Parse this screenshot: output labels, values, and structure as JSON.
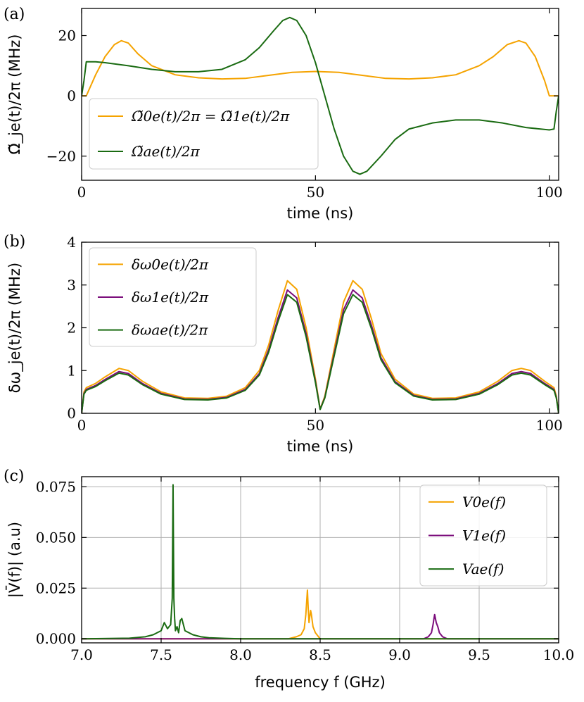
{
  "chart_data": [
    {
      "panel_label": "(a)",
      "type": "line",
      "xlabel": "time (ns)",
      "ylabel": "Ω̃_je(t)/2π (MHz)",
      "xlim": [
        0,
        102
      ],
      "ylim": [
        -28,
        29
      ],
      "xticks": [
        0,
        50,
        100
      ],
      "yticks": [
        -20,
        0,
        20
      ],
      "grid": false,
      "legend_position": "lower-left",
      "series": [
        {
          "name": "Ω̃0e(t)/2π = Ω̃1e(t)/2π",
          "color": "#f5a300",
          "x": [
            0,
            1,
            3,
            5,
            7,
            8.5,
            10,
            12,
            15,
            20,
            25,
            30,
            35,
            40,
            45,
            50,
            55,
            60,
            65,
            70,
            75,
            80,
            85,
            88,
            91,
            93.5,
            95,
            97,
            99,
            100,
            101,
            102
          ],
          "y": [
            0,
            0,
            7,
            13,
            17,
            18.3,
            17.5,
            14,
            10,
            7,
            6,
            5.6,
            5.8,
            6.8,
            7.8,
            8.1,
            7.8,
            6.8,
            5.8,
            5.6,
            6,
            7,
            10,
            13,
            17,
            18.3,
            17.5,
            13,
            5,
            0,
            0,
            0
          ]
        },
        {
          "name": "Ω̃ae(t)/2π",
          "color": "#1a6b12",
          "x": [
            0,
            0.5,
            1,
            3,
            5,
            10,
            15,
            20,
            25,
            30,
            35,
            38,
            41,
            43,
            44.5,
            46,
            48,
            50,
            52,
            54,
            56,
            58,
            59.5,
            61,
            64,
            67,
            70,
            75,
            80,
            85,
            90,
            95,
            100,
            101,
            101.5,
            102
          ],
          "y": [
            0,
            5,
            11.3,
            11.3,
            11,
            10,
            8.8,
            8,
            8,
            8.8,
            12,
            16,
            21.5,
            25,
            26,
            25,
            20,
            11,
            0,
            -11,
            -20,
            -25,
            -26,
            -25,
            -20,
            -14.5,
            -11,
            -9,
            -8,
            -8,
            -9,
            -10.5,
            -11.3,
            -11,
            -5,
            0
          ]
        }
      ]
    },
    {
      "panel_label": "(b)",
      "type": "line",
      "xlabel": "time (ns)",
      "ylabel": "δω_je(t)/2π (MHz)",
      "xlim": [
        0,
        102
      ],
      "ylim": [
        0,
        4
      ],
      "xticks": [
        0,
        50,
        100
      ],
      "yticks": [
        0,
        1,
        2,
        3,
        4
      ],
      "grid": false,
      "legend_position": "upper-left",
      "series": [
        {
          "name": "δω0e(t)/2π",
          "color": "#f5a300",
          "scale": 1.0,
          "x": [
            0,
            0.5,
            1,
            3,
            5,
            8,
            10,
            13,
            17,
            22,
            27,
            31,
            35,
            38,
            40,
            42,
            44,
            46,
            48,
            50,
            51,
            52,
            54,
            56,
            58,
            60,
            62,
            64,
            67,
            71,
            75,
            80,
            85,
            89,
            92,
            94,
            96,
            99,
            101,
            101.5,
            102
          ],
          "y": [
            0,
            0.5,
            0.6,
            0.7,
            0.85,
            1.05,
            1.0,
            0.75,
            0.5,
            0.36,
            0.35,
            0.4,
            0.6,
            1.0,
            1.6,
            2.4,
            3.1,
            2.9,
            2.0,
            0.8,
            0.1,
            0.4,
            1.5,
            2.6,
            3.1,
            2.9,
            2.2,
            1.4,
            0.8,
            0.45,
            0.35,
            0.36,
            0.5,
            0.75,
            1.0,
            1.05,
            1.0,
            0.75,
            0.6,
            0.4,
            0
          ]
        },
        {
          "name": "δω1e(t)/2π",
          "color": "#7b0c7b",
          "scale": 0.93
        },
        {
          "name": "δωae(t)/2π",
          "color": "#1a6b12",
          "scale": 0.895
        }
      ]
    },
    {
      "panel_label": "(c)",
      "type": "line",
      "xlabel": "frequency f (GHz)",
      "ylabel": "|V̄(f)| (a.u)",
      "xlim": [
        7.0,
        10.0
      ],
      "ylim": [
        -0.002,
        0.08
      ],
      "xticks": [
        7.0,
        7.5,
        8.0,
        8.5,
        9.0,
        9.5,
        10.0
      ],
      "xtick_labels": [
        "7.0",
        "7.5",
        "8.0",
        "8.5",
        "9.0",
        "9.5",
        "10.0"
      ],
      "yticks": [
        0.0,
        0.025,
        0.05,
        0.075
      ],
      "ytick_labels": [
        "0.000",
        "0.025",
        "0.050",
        "0.075"
      ],
      "grid": true,
      "legend_position": "upper-right",
      "series": [
        {
          "name": "V0e(f)",
          "color": "#f5a300",
          "x": [
            7.0,
            8.3,
            8.35,
            8.38,
            8.4,
            8.41,
            8.42,
            8.425,
            8.43,
            8.44,
            8.445,
            8.455,
            8.47,
            8.49,
            8.5,
            10.0
          ],
          "y": [
            0,
            0,
            0.001,
            0.002,
            0.005,
            0.012,
            0.024,
            0.015,
            0.008,
            0.014,
            0.012,
            0.006,
            0.003,
            0.001,
            0,
            0
          ]
        },
        {
          "name": "V1e(f)",
          "color": "#7b0c7b",
          "x": [
            7.0,
            9.15,
            9.18,
            9.2,
            9.21,
            9.22,
            9.23,
            9.24,
            9.25,
            9.27,
            9.3,
            10.0
          ],
          "y": [
            0,
            0,
            0.001,
            0.003,
            0.007,
            0.012,
            0.008,
            0.006,
            0.003,
            0.001,
            0,
            0
          ]
        },
        {
          "name": "Vae(f)",
          "color": "#1a6b12",
          "x": [
            7.0,
            7.3,
            7.4,
            7.45,
            7.5,
            7.52,
            7.54,
            7.56,
            7.57,
            7.575,
            7.58,
            7.585,
            7.59,
            7.6,
            7.61,
            7.62,
            7.63,
            7.65,
            7.7,
            7.75,
            7.8,
            7.9,
            8.0,
            10.0
          ],
          "y": [
            0,
            0.0003,
            0.001,
            0.002,
            0.004,
            0.008,
            0.005,
            0.007,
            0.02,
            0.076,
            0.02,
            0.01,
            0.004,
            0.006,
            0.003,
            0.009,
            0.01,
            0.004,
            0.002,
            0.001,
            0.0005,
            0.0002,
            0,
            0
          ]
        }
      ]
    }
  ]
}
